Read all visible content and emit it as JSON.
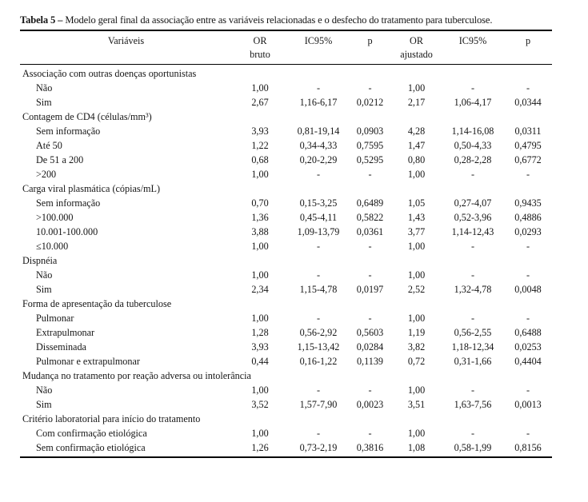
{
  "title": {
    "label": "Tabela 5 –",
    "text": "Modelo geral final da associação entre as variáveis relacionadas e o desfecho do tratamento para tuberculose."
  },
  "table": {
    "headers": {
      "variables": "Variáveis",
      "or_bruto_line1": "OR",
      "or_bruto_line2": "bruto",
      "ic95_bruto": "IC95%",
      "p_bruto": "p",
      "or_ajustado_line1": "OR",
      "or_ajustado_line2": "ajustado",
      "ic95_ajustado": "IC95%",
      "p_ajustado": "p"
    },
    "rows": [
      {
        "type": "group",
        "label": "Associação com outras doenças oportunistas"
      },
      {
        "type": "data",
        "label": "Não",
        "values": [
          "1,00",
          "-",
          "-",
          "1,00",
          "-",
          "-"
        ]
      },
      {
        "type": "data",
        "label": "Sim",
        "values": [
          "2,67",
          "1,16-6,17",
          "0,0212",
          "2,17",
          "1,06-4,17",
          "0,0344"
        ]
      },
      {
        "type": "group",
        "label": "Contagem de CD4 (células/mm³)"
      },
      {
        "type": "data",
        "label": "Sem informação",
        "values": [
          "3,93",
          "0,81-19,14",
          "0,0903",
          "4,28",
          "1,14-16,08",
          "0,0311"
        ]
      },
      {
        "type": "data",
        "label": "Até 50",
        "values": [
          "1,22",
          "0,34-4,33",
          "0,7595",
          "1,47",
          "0,50-4,33",
          "0,4795"
        ]
      },
      {
        "type": "data",
        "label": "De 51 a 200",
        "values": [
          "0,68",
          "0,20-2,29",
          "0,5295",
          "0,80",
          "0,28-2,28",
          "0,6772"
        ]
      },
      {
        "type": "data",
        "label": ">200",
        "values": [
          "1,00",
          "-",
          "-",
          "1,00",
          "-",
          "-"
        ]
      },
      {
        "type": "group",
        "label": "Carga viral plasmática (cópias/mL)"
      },
      {
        "type": "data",
        "label": "Sem informação",
        "values": [
          "0,70",
          "0,15-3,25",
          "0,6489",
          "1,05",
          "0,27-4,07",
          "0,9435"
        ]
      },
      {
        "type": "data",
        "label": ">100.000",
        "values": [
          "1,36",
          "0,45-4,11",
          "0,5822",
          "1,43",
          "0,52-3,96",
          "0,4886"
        ]
      },
      {
        "type": "data",
        "label": "10.001-100.000",
        "values": [
          "3,88",
          "1,09-13,79",
          "0,0361",
          "3,77",
          "1,14-12,43",
          "0,0293"
        ]
      },
      {
        "type": "data",
        "label": "≤10.000",
        "values": [
          "1,00",
          "-",
          "-",
          "1,00",
          "-",
          "-"
        ]
      },
      {
        "type": "group",
        "label": "Dispnéia"
      },
      {
        "type": "data",
        "label": "Não",
        "values": [
          "1,00",
          "-",
          "-",
          "1,00",
          "-",
          "-"
        ]
      },
      {
        "type": "data",
        "label": "Sim",
        "values": [
          "2,34",
          "1,15-4,78",
          "0,0197",
          "2,52",
          "1,32-4,78",
          "0,0048"
        ]
      },
      {
        "type": "group",
        "label": "Forma de apresentação da tuberculose"
      },
      {
        "type": "data",
        "label": "Pulmonar",
        "values": [
          "1,00",
          "-",
          "-",
          "1,00",
          "-",
          "-"
        ]
      },
      {
        "type": "data",
        "label": "Extrapulmonar",
        "values": [
          "1,28",
          "0,56-2,92",
          "0,5603",
          "1,19",
          "0,56-2,55",
          "0,6488"
        ]
      },
      {
        "type": "data",
        "label": "Disseminada",
        "values": [
          "3,93",
          "1,15-13,42",
          "0,0284",
          "3,82",
          "1,18-12,34",
          "0,0253"
        ]
      },
      {
        "type": "data",
        "label": "Pulmonar e extrapulmonar",
        "values": [
          "0,44",
          "0,16-1,22",
          "0,1139",
          "0,72",
          "0,31-1,66",
          "0,4404"
        ]
      },
      {
        "type": "group",
        "label": "Mudança no tratamento por reação adversa ou intolerância"
      },
      {
        "type": "data",
        "label": "Não",
        "values": [
          "1,00",
          "-",
          "-",
          "1,00",
          "-",
          "-"
        ]
      },
      {
        "type": "data",
        "label": "Sim",
        "values": [
          "3,52",
          "1,57-7,90",
          "0,0023",
          "3,51",
          "1,63-7,56",
          "0,0013"
        ]
      },
      {
        "type": "group",
        "label": "Critério laboratorial para início do tratamento"
      },
      {
        "type": "data",
        "label": "Com confirmação etiológica",
        "values": [
          "1,00",
          "-",
          "-",
          "1,00",
          "-",
          "-"
        ]
      },
      {
        "type": "data",
        "label": "Sem confirmação etiológica",
        "values": [
          "1,26",
          "0,73-2,19",
          "0,3816",
          "1,08",
          "0,58-1,99",
          "0,8156"
        ]
      }
    ]
  }
}
